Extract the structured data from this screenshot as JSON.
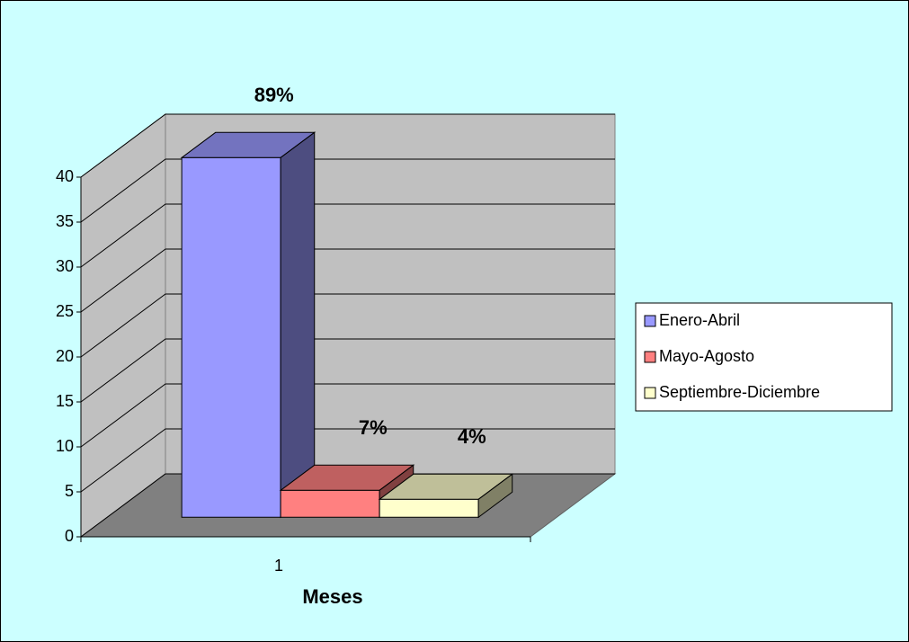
{
  "chart_data": {
    "type": "bar3d",
    "categories": [
      "1"
    ],
    "x_label": "Meses",
    "series": [
      {
        "name": "Enero-Abril",
        "color": "#9999ff",
        "values": [
          40
        ],
        "data_label": "89%"
      },
      {
        "name": "Mayo-Agosto",
        "color": "#ff8080",
        "values": [
          3
        ],
        "data_label": "7%"
      },
      {
        "name": "Septiembre-Diciembre",
        "color": "#ffffcc",
        "values": [
          2
        ],
        "data_label": "4%"
      }
    ],
    "ylim": [
      0,
      40
    ],
    "yticks": [
      0,
      5,
      10,
      15,
      20,
      25,
      30,
      35,
      40
    ],
    "grid": true,
    "legend": "right"
  }
}
